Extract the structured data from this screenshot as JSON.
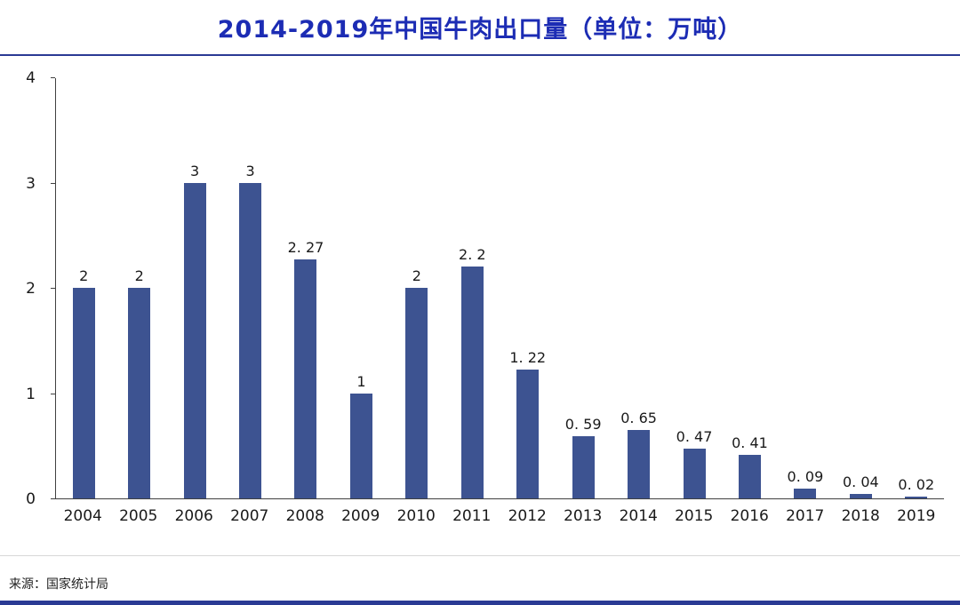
{
  "title": "2014-2019年中国牛肉出口量（单位：万吨）",
  "source": "来源：国家统计局",
  "colors": {
    "title": "#1c2cb4",
    "bar": "#3d5391",
    "accent_line": "#2a3a94",
    "axis": "#404040",
    "footer_line": "#d8d8d8"
  },
  "chart_data": {
    "type": "bar",
    "title": "2014-2019年中国牛肉出口量（单位：万吨）",
    "categories": [
      "2004",
      "2005",
      "2006",
      "2007",
      "2008",
      "2009",
      "2010",
      "2011",
      "2012",
      "2013",
      "2014",
      "2015",
      "2016",
      "2017",
      "2018",
      "2019"
    ],
    "values": [
      2,
      2,
      3,
      3,
      2.27,
      1,
      2,
      2.2,
      1.22,
      0.59,
      0.65,
      0.47,
      0.41,
      0.09,
      0.04,
      0.02
    ],
    "value_labels": [
      "2",
      "2",
      "3",
      "3",
      "2. 27",
      "1",
      "2",
      "2. 2",
      "1. 22",
      "0. 59",
      "0. 65",
      "0. 47",
      "0. 41",
      "0. 09",
      "0. 04",
      "0. 02"
    ],
    "xlabel": "",
    "ylabel": "",
    "ylim": [
      0,
      4
    ],
    "yticks": [
      0,
      1,
      2,
      3,
      4
    ],
    "grid": false,
    "legend": "none"
  }
}
